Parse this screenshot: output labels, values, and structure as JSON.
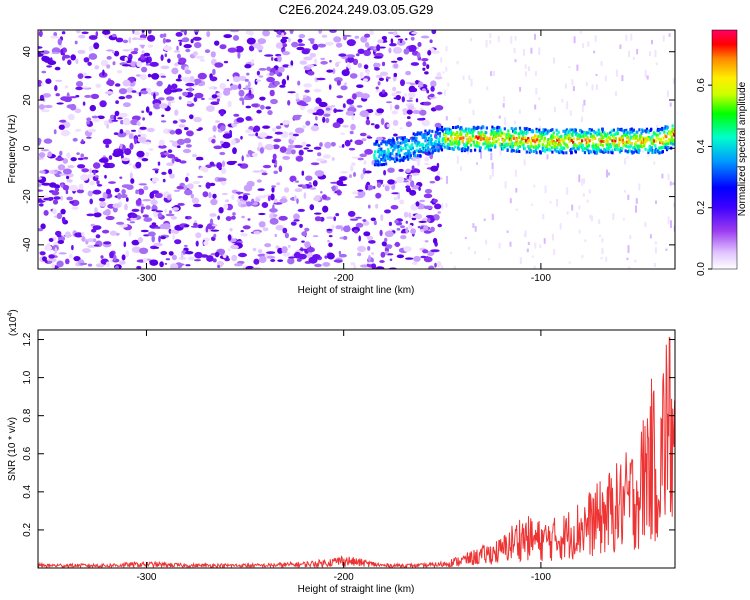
{
  "title": "C2E6.2024.249.03.05.G29",
  "chart_data": [
    {
      "type": "heatmap",
      "title": "C2E6.2024.249.03.05.G29",
      "xlabel": "Height of straight line (km)",
      "ylabel": "Frequency (Hz)",
      "xlim": [
        -355,
        -32
      ],
      "ylim": [
        -50,
        49
      ],
      "x_ticks": [
        -300,
        -200,
        -100
      ],
      "y_ticks": [
        -40,
        -20,
        0,
        20,
        40
      ],
      "tone_track": {
        "description_points_x": [
          -180,
          -150,
          -120,
          -100,
          -80,
          -60,
          -40,
          -32
        ],
        "frequency_hz": [
          -2,
          4,
          4,
          3,
          3,
          3,
          3,
          6
        ]
      },
      "colorbar": {
        "label": "Normalized spectral amplitude",
        "range": [
          0.0,
          0.78
        ],
        "ticks": [
          0.0,
          0.2,
          0.4,
          0.6
        ],
        "colormap": [
          "#ffffff",
          "#d9b3ff",
          "#8a2be2",
          "#5b00ff",
          "#0000ff",
          "#00aaff",
          "#00ffcc",
          "#00ff00",
          "#ccff00",
          "#ffff00",
          "#ff9900",
          "#ff0000",
          "#ff0066"
        ]
      },
      "grid": false
    },
    {
      "type": "line",
      "xlabel": "Height of straight line (km)",
      "ylabel": "SNR (10 * v/v)",
      "multiplier_label": "(x10",
      "multiplier_exp": "4",
      "multiplier_close": ")",
      "xlim": [
        -355,
        -32
      ],
      "ylim": [
        0,
        1.25
      ],
      "x_ticks": [
        -300,
        -200,
        -100
      ],
      "y_ticks": [
        0.2,
        0.4,
        0.6,
        0.8,
        1.0,
        1.2
      ],
      "series": [
        {
          "color": "#ee3333",
          "x": [
            -355,
            -340,
            -320,
            -300,
            -280,
            -260,
            -240,
            -220,
            -210,
            -200,
            -190,
            -180,
            -170,
            -160,
            -150,
            -140,
            -130,
            -120,
            -115,
            -110,
            -100,
            -90,
            -80,
            -70,
            -60,
            -50,
            -45,
            -40,
            -36,
            -32
          ],
          "y": [
            0.02,
            0.02,
            0.02,
            0.03,
            0.02,
            0.02,
            0.02,
            0.03,
            0.04,
            0.06,
            0.04,
            0.02,
            0.02,
            0.02,
            0.03,
            0.06,
            0.1,
            0.14,
            0.2,
            0.25,
            0.22,
            0.24,
            0.32,
            0.4,
            0.5,
            0.6,
            0.9,
            0.75,
            1.22,
            0.9
          ]
        }
      ],
      "grid": false
    }
  ]
}
